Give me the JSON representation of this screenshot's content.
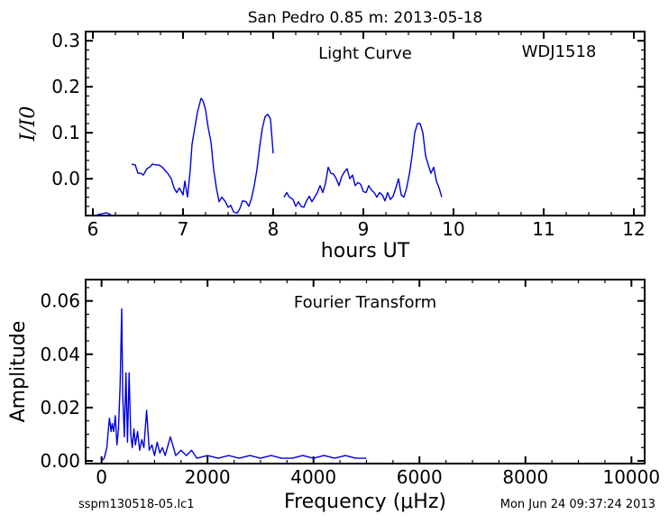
{
  "title": "San Pedro 0.85 m:  2013-05-18",
  "footer": {
    "left": "sspm130518-05.lc1",
    "right": "Mon Jun 24 09:37:24 2013"
  },
  "chart_data": [
    {
      "type": "line",
      "title": "Light Curve",
      "annotation": "WDJ1518",
      "xlabel": "hours UT",
      "ylabel": "I/I0",
      "xlim": [
        5.92,
        12.12
      ],
      "ylim": [
        -0.08,
        0.32
      ],
      "xticks": [
        6,
        7,
        8,
        9,
        10,
        11,
        12
      ],
      "yticks": [
        0.0,
        0.1,
        0.2,
        0.3
      ],
      "ytick_labels": [
        "0.0",
        "0.1",
        "0.2",
        "0.3"
      ],
      "line_color": "#0000dd",
      "grid": false,
      "segments": [
        {
          "x": [
            6.05,
            6.1,
            6.15,
            6.2
          ],
          "y": [
            -0.08,
            -0.076,
            -0.074,
            -0.08
          ]
        },
        {
          "x": [
            6.43,
            6.47,
            6.5,
            6.53,
            6.56,
            6.6,
            6.63,
            6.66,
            6.7,
            6.73,
            6.77,
            6.8,
            6.83,
            6.87,
            6.9,
            6.93,
            6.96,
            7.0,
            7.02,
            7.05,
            7.08,
            7.1,
            7.13,
            7.16,
            7.2,
            7.22,
            7.25,
            7.28,
            7.31,
            7.34,
            7.37,
            7.4,
            7.43,
            7.47,
            7.5,
            7.53,
            7.56,
            7.6,
            7.63,
            7.66,
            7.7,
            7.73,
            7.76,
            7.79,
            7.82,
            7.85,
            7.88,
            7.91,
            7.94,
            7.97,
            8.0
          ],
          "y": [
            0.032,
            0.03,
            0.012,
            0.012,
            0.008,
            0.022,
            0.025,
            0.032,
            0.03,
            0.03,
            0.025,
            0.018,
            0.012,
            0.0,
            -0.02,
            -0.03,
            -0.02,
            -0.035,
            -0.005,
            -0.04,
            0.02,
            0.075,
            0.11,
            0.145,
            0.175,
            0.17,
            0.15,
            0.11,
            0.08,
            0.02,
            -0.02,
            -0.05,
            -0.04,
            -0.05,
            -0.062,
            -0.058,
            -0.072,
            -0.075,
            -0.065,
            -0.048,
            -0.05,
            -0.06,
            -0.042,
            -0.015,
            0.02,
            0.07,
            0.11,
            0.135,
            0.14,
            0.13,
            0.055
          ]
        },
        {
          "x": [
            8.12,
            8.15,
            8.18,
            8.22,
            8.25,
            8.28,
            8.31,
            8.34,
            8.37,
            8.4,
            8.43,
            8.46,
            8.49,
            8.52,
            8.55,
            8.58,
            8.61,
            8.64,
            8.67,
            8.7,
            8.73,
            8.76,
            8.79,
            8.82,
            8.85,
            8.88,
            8.91,
            8.94,
            8.97,
            9.0,
            9.03,
            9.06,
            9.09,
            9.12,
            9.15,
            9.18,
            9.21,
            9.24,
            9.27,
            9.3,
            9.33,
            9.36,
            9.39,
            9.42,
            9.45,
            9.48,
            9.51,
            9.54,
            9.57,
            9.6,
            9.63,
            9.66,
            9.69,
            9.72,
            9.75,
            9.78,
            9.81,
            9.84,
            9.87
          ],
          "y": [
            -0.04,
            -0.03,
            -0.04,
            -0.045,
            -0.06,
            -0.05,
            -0.06,
            -0.062,
            -0.048,
            -0.038,
            -0.05,
            -0.04,
            -0.03,
            -0.015,
            -0.03,
            -0.01,
            0.025,
            0.012,
            0.01,
            0.0,
            -0.015,
            0.005,
            0.015,
            0.022,
            0.0,
            0.008,
            -0.015,
            -0.008,
            -0.012,
            -0.028,
            -0.03,
            -0.015,
            -0.025,
            -0.03,
            -0.04,
            -0.03,
            -0.035,
            -0.048,
            -0.03,
            -0.045,
            -0.038,
            -0.02,
            0.0,
            -0.035,
            -0.04,
            -0.02,
            0.01,
            0.05,
            0.1,
            0.12,
            0.12,
            0.1,
            0.05,
            0.03,
            0.012,
            0.025,
            -0.005,
            -0.02,
            -0.04
          ]
        }
      ]
    },
    {
      "type": "line",
      "title": "Fourier Transform",
      "xlabel": "Frequency (μHz)",
      "ylabel": "Amplitude",
      "xlim": [
        -300,
        10250
      ],
      "ylim": [
        -0.001,
        0.068
      ],
      "xticks": [
        0,
        2000,
        4000,
        6000,
        8000,
        10000
      ],
      "yticks": [
        0.0,
        0.02,
        0.04,
        0.06
      ],
      "ytick_labels": [
        "0.00",
        "0.02",
        "0.04",
        "0.06"
      ],
      "line_color": "#0000dd",
      "grid": false,
      "x": [
        0,
        50,
        100,
        120,
        150,
        180,
        200,
        230,
        260,
        290,
        320,
        350,
        380,
        400,
        430,
        460,
        490,
        520,
        550,
        580,
        610,
        640,
        680,
        720,
        760,
        800,
        850,
        900,
        950,
        1000,
        1050,
        1100,
        1150,
        1200,
        1300,
        1400,
        1500,
        1600,
        1700,
        1800,
        2000,
        2200,
        2400,
        2600,
        2800,
        3000,
        3200,
        3400,
        3600,
        3800,
        4000,
        4200,
        4400,
        4600,
        4800,
        5000
      ],
      "y": [
        0.0,
        0.001,
        0.005,
        0.01,
        0.016,
        0.011,
        0.014,
        0.011,
        0.017,
        0.006,
        0.012,
        0.028,
        0.057,
        0.025,
        0.009,
        0.033,
        0.007,
        0.033,
        0.01,
        0.005,
        0.012,
        0.006,
        0.011,
        0.004,
        0.008,
        0.005,
        0.019,
        0.004,
        0.006,
        0.002,
        0.007,
        0.003,
        0.005,
        0.002,
        0.009,
        0.002,
        0.004,
        0.002,
        0.004,
        0.001,
        0.002,
        0.001,
        0.002,
        0.001,
        0.002,
        0.001,
        0.002,
        0.001,
        0.001,
        0.002,
        0.001,
        0.002,
        0.001,
        0.002,
        0.001,
        0.001
      ]
    }
  ]
}
